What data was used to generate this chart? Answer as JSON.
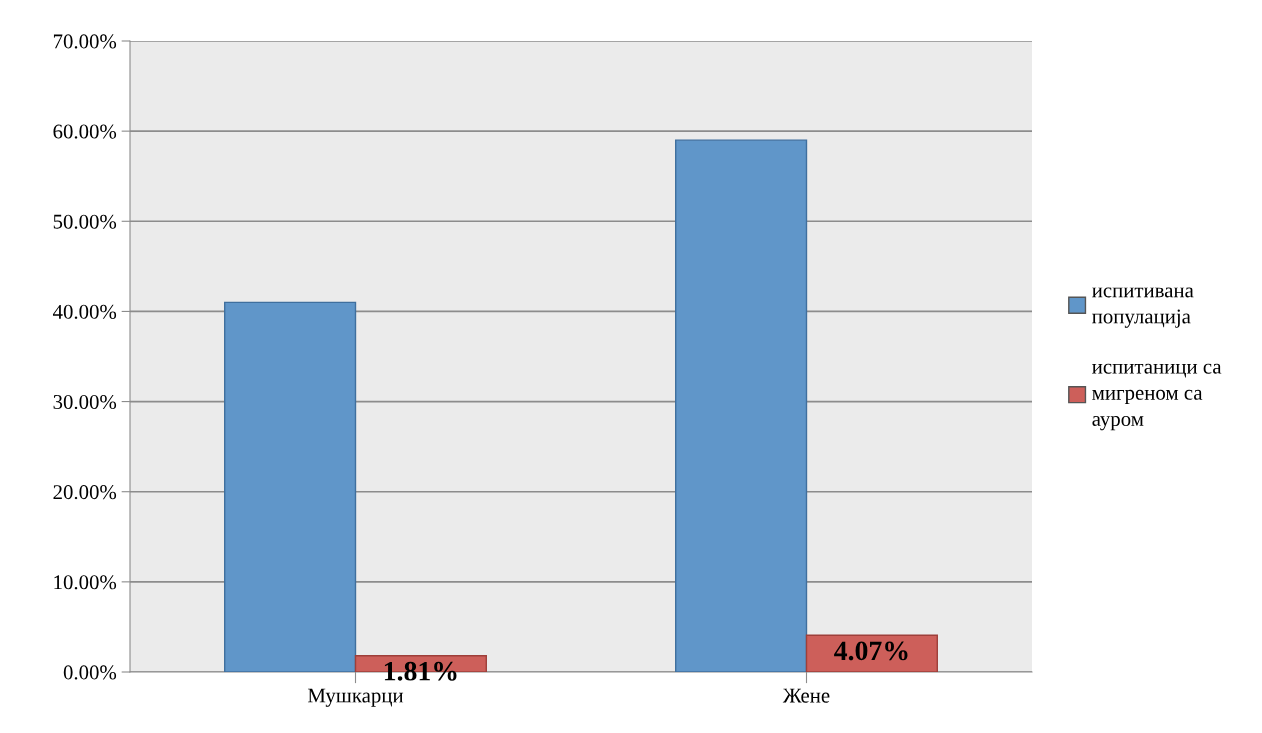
{
  "chart_data": {
    "type": "bar",
    "categories": [
      "Мушкарци",
      "Жене"
    ],
    "series": [
      {
        "name": "испитивана\nпопулација",
        "color": "#6096c9",
        "values": [
          41.0,
          59.0
        ]
      },
      {
        "name": "испитаници са\nмигреном са\nауром",
        "color": "#cd5f5a",
        "values": [
          1.81,
          4.07
        ],
        "value_labels": [
          "1.81%",
          "4.07%"
        ]
      }
    ],
    "ylim": [
      0,
      70
    ],
    "yticks": [
      {
        "value": 0,
        "label": "0.00%"
      },
      {
        "value": 10,
        "label": "10.00%"
      },
      {
        "value": 20,
        "label": "20.00%"
      },
      {
        "value": 30,
        "label": "30.00%"
      },
      {
        "value": 40,
        "label": "40.00%"
      },
      {
        "value": 50,
        "label": "50.00%"
      },
      {
        "value": 60,
        "label": "60.00%"
      },
      {
        "value": 70,
        "label": "70.00%"
      }
    ],
    "grid": "y",
    "legend": "right"
  }
}
